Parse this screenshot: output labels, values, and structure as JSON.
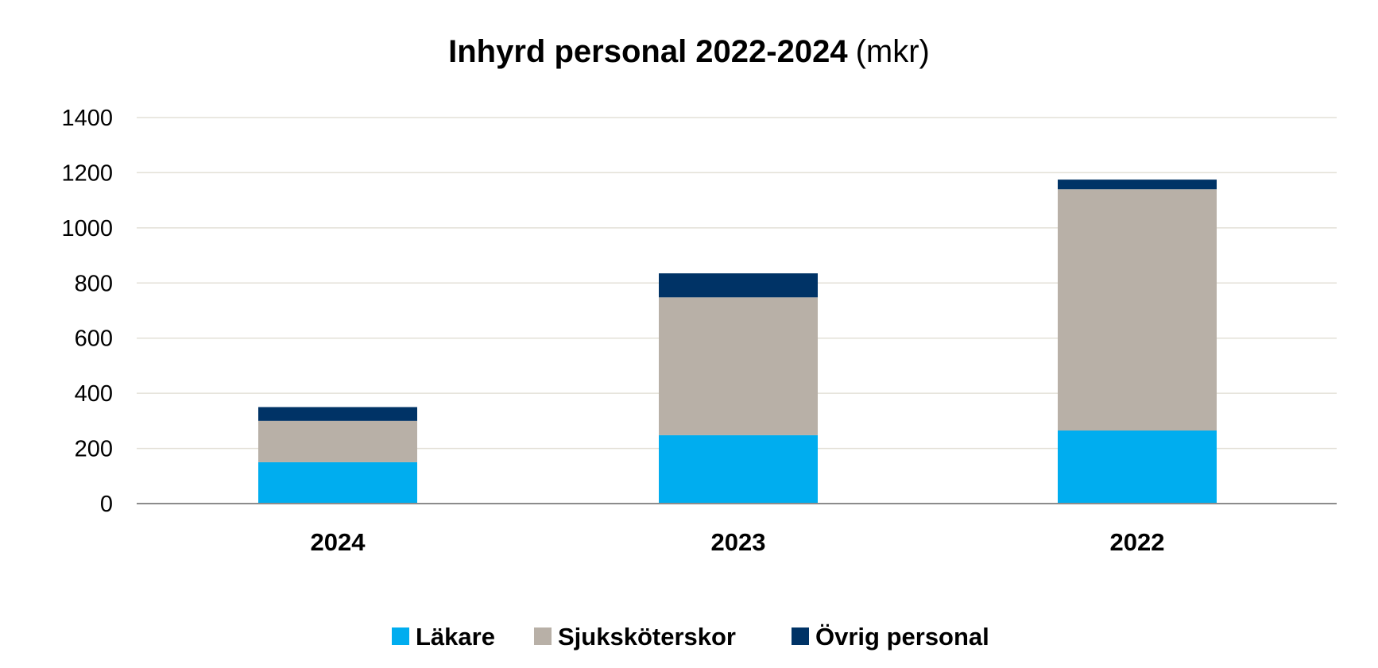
{
  "chart_data": {
    "type": "bar",
    "stacked": true,
    "title": "Inhyrd personal 2022-2024",
    "title_unit": "(mkr)",
    "categories": [
      "2024",
      "2023",
      "2022"
    ],
    "series": [
      {
        "name": "Läkare",
        "color": "#00adef",
        "values": [
          150,
          248,
          265
        ]
      },
      {
        "name": "Sjuksköterskor",
        "color": "#b8b0a7",
        "values": [
          150,
          500,
          875
        ]
      },
      {
        "name": "Övrig personal",
        "color": "#003366",
        "values": [
          50,
          87,
          35
        ]
      }
    ],
    "ylim": [
      0,
      1400
    ],
    "yticks": [
      "0",
      "200",
      "400",
      "600",
      "800",
      "1000",
      "1200",
      "1400"
    ],
    "grid": true,
    "legend_position": "bottom"
  }
}
